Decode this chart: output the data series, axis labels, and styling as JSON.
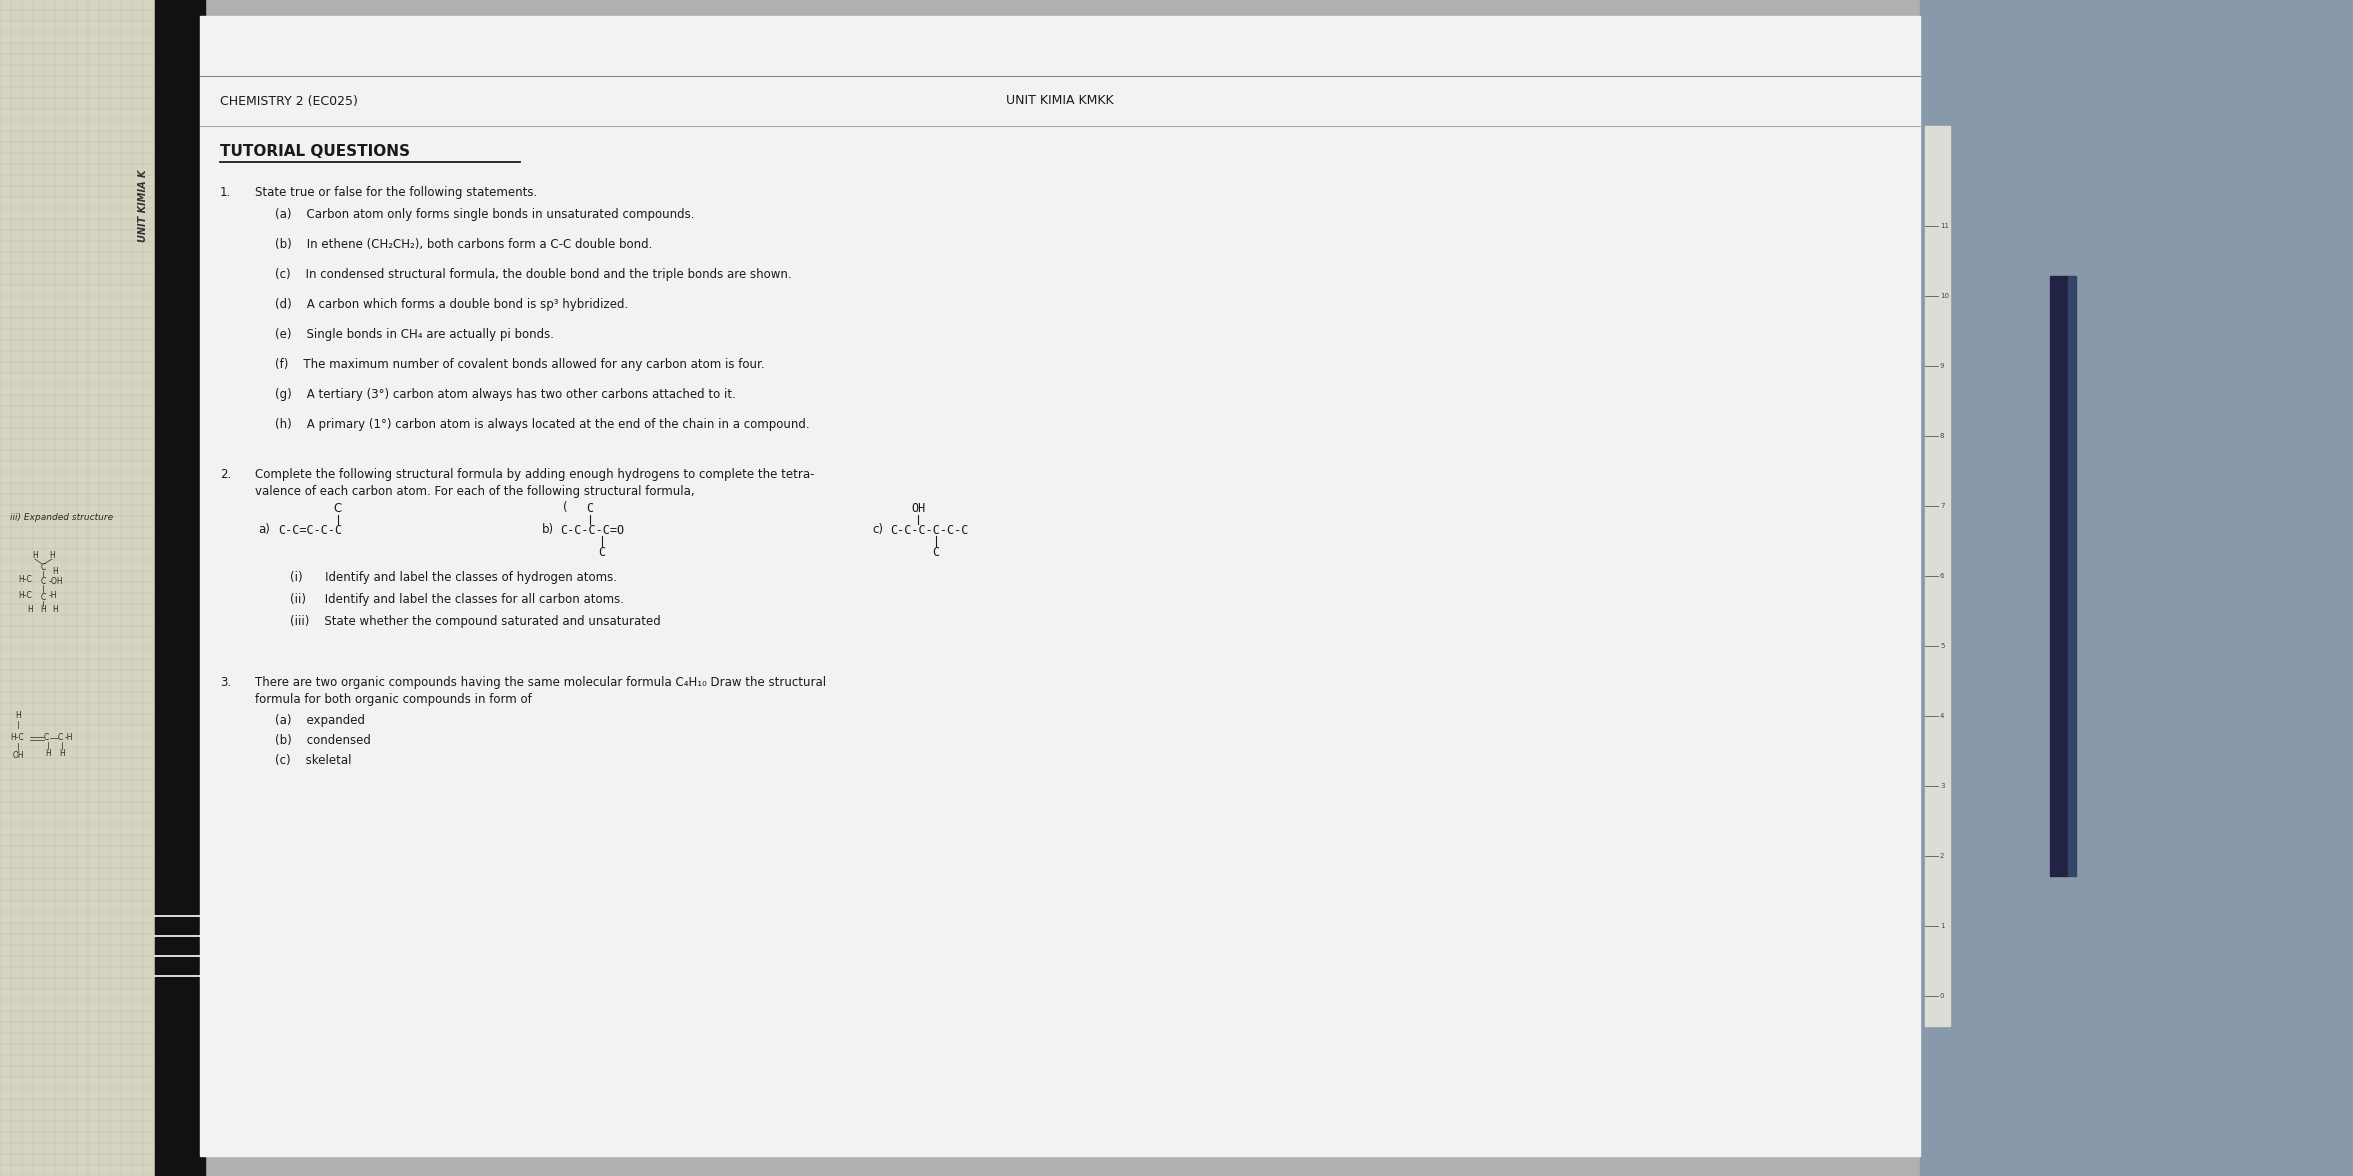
{
  "bg_color": "#b0b0b0",
  "grid_color": "#c8c8b0",
  "page_color": "#f2f2f0",
  "header_left": "CHEMISTRY 2 (EC025)",
  "header_right": "UNIT KIMIA KMKK",
  "title": "TUTORIAL QUESTIONS",
  "q1_items": [
    "(a)    Carbon atom only forms single bonds in unsaturated compounds.",
    "(b)    In ethene (CH₂CH₂), both carbons form a C-C double bond.",
    "(c)    In condensed structural formula, the double bond and the triple bonds are shown.",
    "(d)    A carbon which forms a double bond is sp³ hybridized.",
    "(e)    Single bonds in CH₄ are actually pi bonds.",
    "(f)    The maximum number of covalent bonds allowed for any carbon atom is four.",
    "(g)    A tertiary (3°) carbon atom always has two other carbons attached to it.",
    "(h)    A primary (1°) carbon atom is always located at the end of the chain in a compound."
  ],
  "q2_line1": "Complete the following structural formula by adding enough hydrogens to complete the tetra-",
  "q2_line2": "valence of each carbon atom. For each of the following structural formula,",
  "q2_items": [
    "(i)      Identify and label the classes of hydrogen atoms.",
    "(ii)     Identify and label the classes for all carbon atoms.",
    "(iii)    State whether the compound saturated and unsaturated"
  ],
  "q3_line1": "There are two organic compounds having the same molecular formula C₄H₁₀ Draw the structural",
  "q3_line2": "formula for both organic compounds in form of",
  "q3_items": [
    "(a)    expanded",
    "(b)    condensed",
    "(c)    skeletal"
  ],
  "font_size_header": 9,
  "font_size_title": 11,
  "font_size_body": 8.5,
  "font_size_small": 7,
  "text_color": "#1a1a1a",
  "spine_label": "UNIT KIMIA K",
  "expanded_label": "iii) Expanded structure"
}
